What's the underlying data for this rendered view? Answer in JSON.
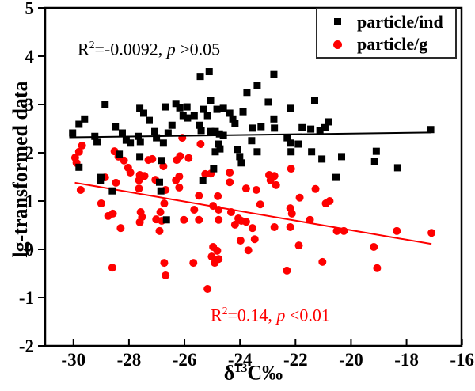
{
  "figure": {
    "background": "#ffffff",
    "frame_color": "#000000"
  },
  "legend": {
    "border_color": "#2a2a2a"
  },
  "chart_data": {
    "type": "scatter",
    "title": "",
    "xlabel": {
      "prefix": "δ",
      "sup": "13",
      "suffix": "C‰",
      "plain": "δ13C‰"
    },
    "ylabel": "lg-transformed data",
    "xlim": [
      -31.02,
      -16.02
    ],
    "ylim": [
      -2,
      5
    ],
    "x_ticks": [
      -30,
      -28,
      -26,
      -24,
      -22,
      -20,
      -18,
      -16
    ],
    "y_ticks": [
      5,
      4,
      3,
      2,
      1,
      0,
      -1,
      -2
    ],
    "grid": false,
    "legend_position": "top-right",
    "series": [
      {
        "name": "particle/ind",
        "marker": "square",
        "color": "#000000",
        "trend_line": [
          [
            -30.15,
            2.32
          ],
          [
            -17.1,
            2.42
          ]
        ],
        "points": [
          [
            -30.03,
            2.41
          ],
          [
            -29.8,
            2.59
          ],
          [
            -29.6,
            2.7
          ],
          [
            -28.86,
            3.0
          ],
          [
            -29.23,
            2.34
          ],
          [
            -29.15,
            2.23
          ],
          [
            -28.49,
            2.54
          ],
          [
            -28.24,
            2.41
          ],
          [
            -28.1,
            2.26
          ],
          [
            -28.35,
            1.97
          ],
          [
            -29.8,
            1.7
          ],
          [
            -29.01,
            1.49
          ],
          [
            -27.61,
            2.92
          ],
          [
            -27.47,
            2.82
          ],
          [
            -27.27,
            2.67
          ],
          [
            -26.68,
            2.95
          ],
          [
            -26.31,
            3.02
          ],
          [
            -26.17,
            2.93
          ],
          [
            -25.91,
            2.95
          ],
          [
            -26.05,
            2.77
          ],
          [
            -25.89,
            2.72
          ],
          [
            -26.45,
            2.57
          ],
          [
            -27.67,
            2.34
          ],
          [
            -27.59,
            2.23
          ],
          [
            -27.07,
            2.44
          ],
          [
            -27.01,
            2.31
          ],
          [
            -26.76,
            2.2
          ],
          [
            -26.59,
            2.41
          ],
          [
            -27.95,
            2.2
          ],
          [
            -27.61,
            1.92
          ],
          [
            -26.84,
            1.84
          ],
          [
            -25.43,
            3.58
          ],
          [
            -25.11,
            3.68
          ],
          [
            -22.78,
            3.62
          ],
          [
            -23.38,
            3.39
          ],
          [
            -23.75,
            3.25
          ],
          [
            -25.06,
            3.08
          ],
          [
            -22.98,
            3.05
          ],
          [
            -21.31,
            3.08
          ],
          [
            -22.19,
            2.92
          ],
          [
            -24.83,
            2.9
          ],
          [
            -24.6,
            2.92
          ],
          [
            -25.31,
            2.9
          ],
          [
            -25.65,
            2.77
          ],
          [
            -24.37,
            2.82
          ],
          [
            -24.26,
            2.7
          ],
          [
            -23.89,
            2.85
          ],
          [
            -25.17,
            2.77
          ],
          [
            -24.18,
            2.61
          ],
          [
            -22.78,
            2.7
          ],
          [
            -25.45,
            2.57
          ],
          [
            -25.4,
            2.46
          ],
          [
            -23.55,
            2.51
          ],
          [
            -23.24,
            2.54
          ],
          [
            -22.76,
            2.51
          ],
          [
            -21.76,
            2.52
          ],
          [
            -21.45,
            2.49
          ],
          [
            -20.8,
            2.64
          ],
          [
            -20.94,
            2.52
          ],
          [
            -21.12,
            2.46
          ],
          [
            -25.06,
            2.44
          ],
          [
            -24.89,
            2.44
          ],
          [
            -24.74,
            2.39
          ],
          [
            -24.6,
            2.36
          ],
          [
            -24.77,
            2.18
          ],
          [
            -24.72,
            2.08
          ],
          [
            -24.89,
            2.02
          ],
          [
            -23.58,
            2.25
          ],
          [
            -23.38,
            2.02
          ],
          [
            -24.09,
            2.07
          ],
          [
            -24.01,
            1.92
          ],
          [
            -23.95,
            1.79
          ],
          [
            -22.3,
            2.31
          ],
          [
            -22.19,
            2.2
          ],
          [
            -21.9,
            2.18
          ],
          [
            -22.16,
            2.02
          ],
          [
            -21.42,
            2.02
          ],
          [
            -21.05,
            1.87
          ],
          [
            -24.95,
            1.67
          ],
          [
            -25.34,
            1.43
          ],
          [
            -17.13,
            2.48
          ],
          [
            -20.34,
            1.92
          ],
          [
            -19.09,
            2.03
          ],
          [
            -19.15,
            1.82
          ],
          [
            -18.32,
            1.69
          ],
          [
            -20.54,
            1.49
          ],
          [
            -29.03,
            1.43
          ],
          [
            -28.6,
            1.21
          ],
          [
            -26.9,
            1.39
          ],
          [
            -26.85,
            1.21
          ],
          [
            -26.65,
            0.61
          ]
        ]
      },
      {
        "name": "particle/g",
        "marker": "circle",
        "color": "#fe0000",
        "trend_line": [
          [
            -29.95,
            1.38
          ],
          [
            -17.1,
            0.11
          ]
        ],
        "points": [
          [
            -29.69,
            2.15
          ],
          [
            -29.8,
            2.02
          ],
          [
            -29.94,
            1.9
          ],
          [
            -29.89,
            1.79
          ],
          [
            -28.52,
            2.03
          ],
          [
            -28.38,
            1.92
          ],
          [
            -28.18,
            1.84
          ],
          [
            -28.03,
            1.69
          ],
          [
            -27.95,
            1.59
          ],
          [
            -28.86,
            1.49
          ],
          [
            -28.47,
            1.38
          ],
          [
            -27.61,
            1.54
          ],
          [
            -27.3,
            1.85
          ],
          [
            -27.16,
            1.87
          ],
          [
            -26.76,
            1.72
          ],
          [
            -26.28,
            1.85
          ],
          [
            -26.16,
            1.93
          ],
          [
            -26.08,
            2.31
          ],
          [
            -26.19,
            1.51
          ],
          [
            -27.44,
            1.52
          ],
          [
            -29.74,
            1.23
          ],
          [
            -27.64,
            1.43
          ],
          [
            -27.64,
            1.26
          ],
          [
            -27.05,
            1.44
          ],
          [
            -26.31,
            1.43
          ],
          [
            -26.19,
            1.28
          ],
          [
            -26.68,
            1.23
          ],
          [
            -26.73,
            0.95
          ],
          [
            -29.0,
            0.95
          ],
          [
            -28.75,
            0.69
          ],
          [
            -28.58,
            0.74
          ],
          [
            -27.58,
            0.77
          ],
          [
            -27.53,
            0.67
          ],
          [
            -27.61,
            0.56
          ],
          [
            -26.87,
            0.77
          ],
          [
            -27.02,
            0.62
          ],
          [
            -26.82,
            0.59
          ],
          [
            -28.3,
            0.44
          ],
          [
            -26.9,
            0.38
          ],
          [
            -26.02,
            0.61
          ],
          [
            -28.6,
            -0.38
          ],
          [
            -26.73,
            -0.28
          ],
          [
            -26.68,
            -0.54
          ],
          [
            -25.42,
            2.18
          ],
          [
            -25.85,
            1.89
          ],
          [
            -25.25,
            1.56
          ],
          [
            -25.05,
            1.57
          ],
          [
            -24.37,
            1.59
          ],
          [
            -22.95,
            1.54
          ],
          [
            -22.76,
            1.52
          ],
          [
            -22.16,
            1.67
          ],
          [
            -24.37,
            1.39
          ],
          [
            -23.78,
            1.26
          ],
          [
            -23.41,
            1.23
          ],
          [
            -22.9,
            1.43
          ],
          [
            -22.7,
            1.33
          ],
          [
            -25.48,
            1.11
          ],
          [
            -24.8,
            1.1
          ],
          [
            -24.97,
            0.9
          ],
          [
            -24.77,
            0.82
          ],
          [
            -25.65,
            0.82
          ],
          [
            -24.32,
            0.77
          ],
          [
            -25.48,
            0.61
          ],
          [
            -24.77,
            0.61
          ],
          [
            -24.06,
            0.64
          ],
          [
            -23.95,
            0.59
          ],
          [
            -24.18,
            0.51
          ],
          [
            -23.78,
            0.57
          ],
          [
            -23.55,
            0.44
          ],
          [
            -23.27,
            0.93
          ],
          [
            -22.19,
            0.85
          ],
          [
            -22.13,
            0.74
          ],
          [
            -21.85,
            1.07
          ],
          [
            -21.48,
            0.61
          ],
          [
            -21.28,
            1.25
          ],
          [
            -20.91,
            0.95
          ],
          [
            -20.77,
            1.0
          ],
          [
            -22.76,
            0.46
          ],
          [
            -22.19,
            0.46
          ],
          [
            -23.98,
            0.18
          ],
          [
            -23.47,
            0.21
          ],
          [
            -24.97,
            0.05
          ],
          [
            -24.82,
            -0.03
          ],
          [
            -25.02,
            -0.15
          ],
          [
            -24.77,
            -0.2
          ],
          [
            -25.68,
            -0.28
          ],
          [
            -24.91,
            -0.28
          ],
          [
            -23.7,
            -0.02
          ],
          [
            -21.88,
            0.08
          ],
          [
            -22.31,
            -0.44
          ],
          [
            -21.03,
            -0.26
          ],
          [
            -25.17,
            -0.82
          ],
          [
            -20.51,
            0.38
          ],
          [
            -20.26,
            0.38
          ],
          [
            -18.35,
            0.38
          ],
          [
            -17.1,
            0.34
          ],
          [
            -19.18,
            0.05
          ],
          [
            -19.06,
            -0.39
          ]
        ]
      }
    ],
    "annotations": [
      {
        "id": "black-fit",
        "color": "#000000",
        "r_prefix": "R",
        "r_sup": "2",
        "value_text": "=-0.0092, ",
        "p_text": "p",
        "tail_text": " >0.05"
      },
      {
        "id": "red-fit",
        "color": "#fe0000",
        "r_prefix": "R",
        "r_sup": "2",
        "value_text": "=0.14, ",
        "p_text": "p",
        "tail_text": " <0.01"
      }
    ]
  }
}
